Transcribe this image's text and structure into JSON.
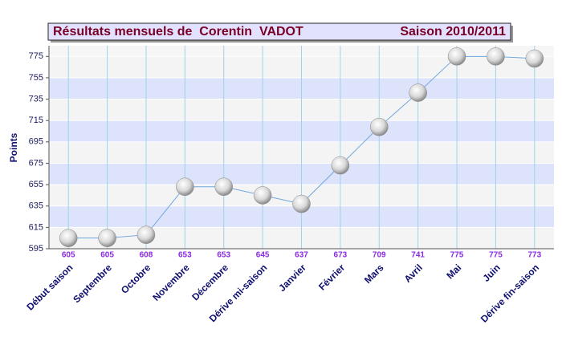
{
  "chart_data": {
    "type": "line",
    "title": "Résultats mensuels de  Corentin  VADOT",
    "subtitle": "Saison 2010/2011",
    "y_label": "Points",
    "categories": [
      "Début saison",
      "Septembre",
      "Octobre",
      "Novembre",
      "Décembre",
      "Dérive mi-saison",
      "Janvier",
      "Février",
      "Mars",
      "Avril",
      "Mai",
      "Juin",
      "Dérive fin-saison"
    ],
    "values": [
      605,
      605,
      608,
      653,
      653,
      645,
      637,
      673,
      709,
      741,
      775,
      775,
      773
    ],
    "color": "#6fa8dc",
    "ylim": [
      595,
      785
    ],
    "yticks": [
      595,
      615,
      635,
      655,
      675,
      695,
      715,
      735,
      755,
      775
    ],
    "grid": true
  }
}
